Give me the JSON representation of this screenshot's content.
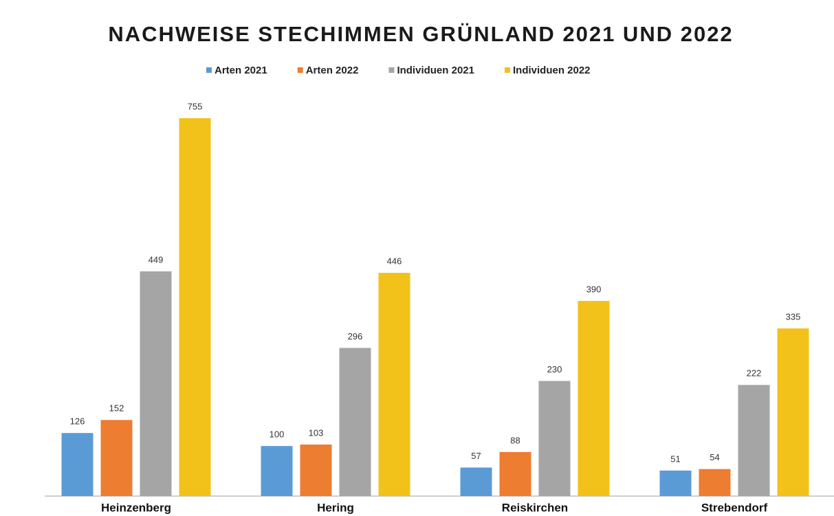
{
  "chart_data": {
    "type": "bar",
    "title": "NACHWEISE STECHIMMEN GRÜNLAND 2021 UND 2022",
    "categories": [
      "Heinzenberg",
      "Hering",
      "Reiskirchen",
      "Strebendorf"
    ],
    "series": [
      {
        "name": "Arten 2021",
        "color": "#5b9bd5",
        "values": [
          126,
          100,
          57,
          51
        ]
      },
      {
        "name": "Arten 2022",
        "color": "#ed7d31",
        "values": [
          152,
          103,
          88,
          54
        ]
      },
      {
        "name": "Individuen 2021",
        "color": "#a5a5a5",
        "values": [
          449,
          296,
          230,
          222
        ]
      },
      {
        "name": "Individuen 2022",
        "color": "#f2c21b",
        "values": [
          755,
          446,
          390,
          335
        ]
      }
    ],
    "legend": "top"
  }
}
